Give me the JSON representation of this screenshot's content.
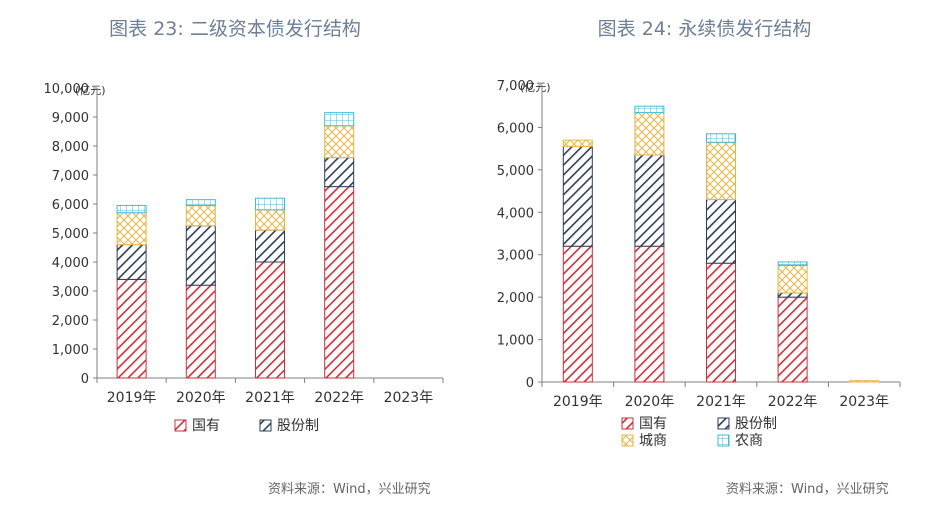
{
  "colors": {
    "guoyou": "#c8323c",
    "gufenzhi": "#2e3f57",
    "chengshang": "#e6b54a",
    "nongshang": "#42bcd2",
    "title": "#6e7f96",
    "axis": "#808080"
  },
  "chart_data": [
    {
      "type": "bar",
      "stacked": true,
      "title": "图表 23: 二级资本债发行结构",
      "unit_label": "(亿元)",
      "categories": [
        "2019年",
        "2020年",
        "2021年",
        "2022年",
        "2023年"
      ],
      "ylim": [
        0,
        10000
      ],
      "yticks": [
        "0",
        "1,000",
        "2,000",
        "3,000",
        "4,000",
        "5,000",
        "6,000",
        "7,000",
        "8,000",
        "9,000",
        "10,000"
      ],
      "series": [
        {
          "name": "国有",
          "color_key": "guoyou",
          "pattern": "hatch-red",
          "values": [
            3400,
            3200,
            4000,
            6600,
            0
          ]
        },
        {
          "name": "股份制",
          "color_key": "gufenzhi",
          "pattern": "hatch-dark",
          "values": [
            1200,
            2050,
            1100,
            1000,
            0
          ]
        },
        {
          "name": "城商",
          "color_key": "chengshang",
          "pattern": "cross-yellow",
          "values": [
            1100,
            700,
            700,
            1100,
            0
          ]
        },
        {
          "name": "农商",
          "color_key": "nongshang",
          "pattern": "grid-cyan",
          "values": [
            250,
            200,
            400,
            450,
            0
          ]
        }
      ],
      "legend": [
        "国有",
        "股份制"
      ],
      "source": "资料来源：Wind，兴业研究"
    },
    {
      "type": "bar",
      "stacked": true,
      "title": "图表 24: 永续债发行结构",
      "unit_label": "(亿元)",
      "categories": [
        "2019年",
        "2020年",
        "2021年",
        "2022年",
        "2023年"
      ],
      "ylim": [
        0,
        7000
      ],
      "yticks": [
        "0",
        "1,000",
        "2,000",
        "3,000",
        "4,000",
        "5,000",
        "6,000",
        "7,000"
      ],
      "series": [
        {
          "name": "国有",
          "color_key": "guoyou",
          "pattern": "hatch-red",
          "values": [
            3200,
            3200,
            2800,
            2000,
            0
          ]
        },
        {
          "name": "股份制",
          "color_key": "gufenzhi",
          "pattern": "hatch-dark",
          "values": [
            2350,
            2150,
            1500,
            100,
            0
          ]
        },
        {
          "name": "城商",
          "color_key": "chengshang",
          "pattern": "cross-yellow",
          "values": [
            150,
            1000,
            1350,
            650,
            30
          ]
        },
        {
          "name": "农商",
          "color_key": "nongshang",
          "pattern": "grid-cyan",
          "values": [
            0,
            150,
            200,
            80,
            0
          ]
        }
      ],
      "legend": [
        "国有",
        "股份制",
        "城商",
        "农商"
      ],
      "source": "资料来源：Wind，兴业研究"
    }
  ]
}
